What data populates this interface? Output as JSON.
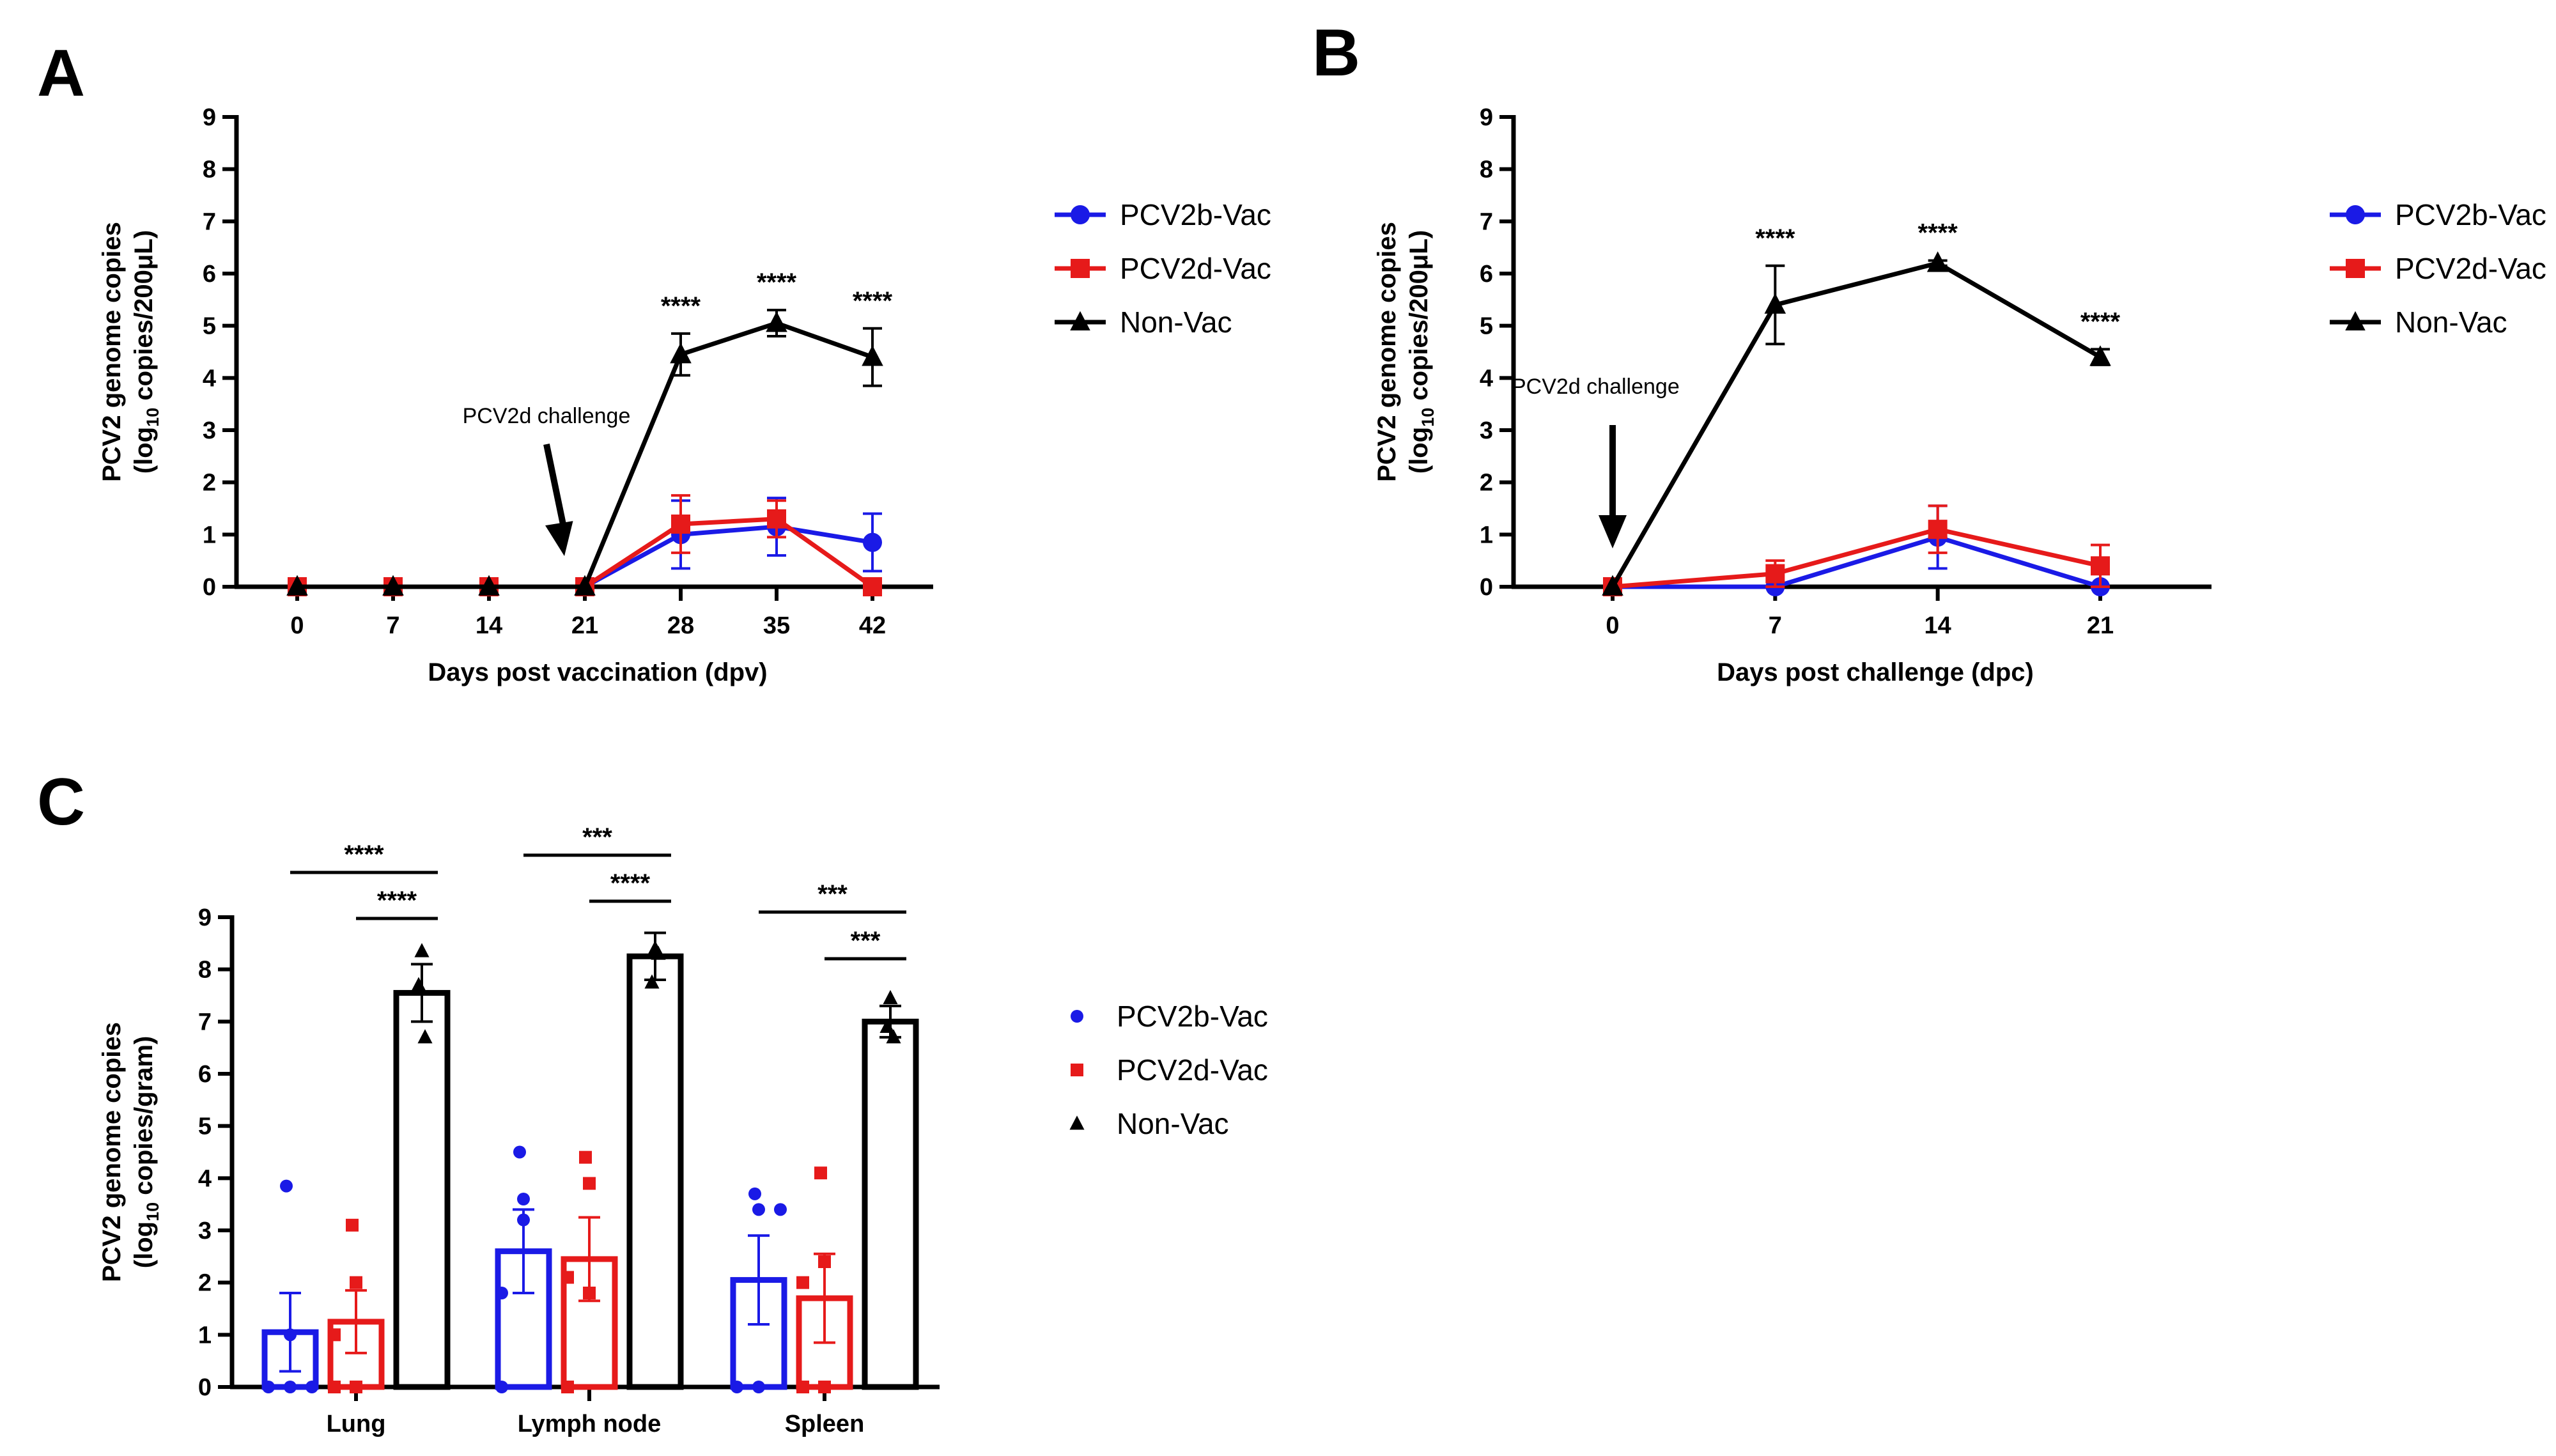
{
  "colors": {
    "PCV2b-Vac": "#1a1ae6",
    "PCV2d-Vac": "#e61a1a",
    "Non-Vac": "#000000"
  },
  "chart_data": [
    {
      "id": "A",
      "panel_label": "A",
      "type": "line",
      "ylabel_line1": "PCV2 genome copies",
      "ylabel_line2_pre": "(log",
      "ylabel_line2_sub": "10",
      "ylabel_line2_post": " copies/200μL)",
      "xlabel": "Days post vaccination (dpv)",
      "ylim": [
        0,
        9
      ],
      "yticks": [
        0,
        1,
        2,
        3,
        4,
        5,
        6,
        7,
        8,
        9
      ],
      "x": [
        0,
        7,
        14,
        21,
        28,
        35,
        42
      ],
      "xtick_labels": [
        "0",
        "7",
        "14",
        "21",
        "28",
        "35",
        "42"
      ],
      "series": [
        {
          "name": "PCV2b-Vac",
          "marker": "circle",
          "values": [
            0,
            0,
            0,
            0,
            1.0,
            1.15,
            0.85
          ],
          "errors": [
            0,
            0,
            0,
            0,
            0.65,
            0.55,
            0.55
          ]
        },
        {
          "name": "PCV2d-Vac",
          "marker": "square",
          "values": [
            0,
            0,
            0,
            0,
            1.2,
            1.3,
            0.0
          ],
          "errors": [
            0,
            0,
            0,
            0,
            0.55,
            0.35,
            0
          ]
        },
        {
          "name": "Non-Vac",
          "marker": "triangle",
          "values": [
            0,
            0,
            0,
            0,
            4.45,
            5.05,
            4.4
          ],
          "errors": [
            0,
            0,
            0,
            0,
            0.4,
            0.25,
            0.55
          ]
        }
      ],
      "significance": [
        {
          "x": 28,
          "label": "****"
        },
        {
          "x": 35,
          "label": "****"
        },
        {
          "x": 42,
          "label": "****"
        }
      ],
      "annotation": {
        "text": "PCV2d challenge",
        "x": 21
      },
      "legend": [
        "PCV2b-Vac",
        "PCV2d-Vac",
        "Non-Vac"
      ]
    },
    {
      "id": "B",
      "panel_label": "B",
      "type": "line",
      "ylabel_line1": "PCV2 genome copies",
      "ylabel_line2_pre": "(log",
      "ylabel_line2_sub": "10",
      "ylabel_line2_post": " copies/200μL)",
      "xlabel": "Days post challenge (dpc)",
      "ylim": [
        0,
        9
      ],
      "yticks": [
        0,
        1,
        2,
        3,
        4,
        5,
        6,
        7,
        8,
        9
      ],
      "x": [
        0,
        7,
        14,
        21
      ],
      "xtick_labels": [
        "0",
        "7",
        "14",
        "21"
      ],
      "series": [
        {
          "name": "PCV2b-Vac",
          "marker": "circle",
          "values": [
            0,
            0.0,
            0.95,
            0.0
          ],
          "errors": [
            0,
            0,
            0.6,
            0
          ]
        },
        {
          "name": "PCV2d-Vac",
          "marker": "square",
          "values": [
            0,
            0.25,
            1.1,
            0.4
          ],
          "errors": [
            0,
            0.25,
            0.45,
            0.4
          ]
        },
        {
          "name": "Non-Vac",
          "marker": "triangle",
          "values": [
            0,
            5.4,
            6.2,
            4.4
          ],
          "errors": [
            0,
            0.75,
            0.05,
            0.15
          ]
        }
      ],
      "significance": [
        {
          "x": 7,
          "label": "****"
        },
        {
          "x": 14,
          "label": "****"
        },
        {
          "x": 21,
          "label": "****"
        }
      ],
      "annotation": {
        "text": "PCV2d challenge",
        "x": 0
      },
      "legend": [
        "PCV2b-Vac",
        "PCV2d-Vac",
        "Non-Vac"
      ]
    },
    {
      "id": "C",
      "panel_label": "C",
      "type": "bar",
      "ylabel_line1": "PCV2 genome copies",
      "ylabel_line2_pre": "(log",
      "ylabel_line2_sub": "10",
      "ylabel_line2_post": " copies/gram)",
      "xlabel": "",
      "ylim": [
        0,
        9
      ],
      "yticks": [
        0,
        1,
        2,
        3,
        4,
        5,
        6,
        7,
        8,
        9
      ],
      "categories": [
        "Lung",
        "Lymph node",
        "Spleen"
      ],
      "series": [
        {
          "name": "PCV2b-Vac",
          "marker": "circle",
          "values": [
            1.05,
            2.6,
            2.05
          ],
          "errors": [
            0.75,
            0.8,
            0.85
          ],
          "points": [
            [
              3.85,
              1.0,
              0,
              0,
              0
            ],
            [
              4.5,
              3.6,
              1.8,
              3.2,
              0
            ],
            [
              3.7,
              3.4,
              0,
              0,
              3.4
            ]
          ]
        },
        {
          "name": "PCV2d-Vac",
          "marker": "square",
          "values": [
            1.25,
            2.45,
            1.7
          ],
          "errors": [
            0.6,
            0.8,
            0.85
          ],
          "points": [
            [
              3.1,
              2.0,
              1.0,
              0,
              0
            ],
            [
              4.4,
              3.9,
              2.1,
              1.8,
              0
            ],
            [
              4.1,
              2.4,
              2.0,
              0,
              0
            ]
          ]
        },
        {
          "name": "Non-Vac",
          "marker": "triangle",
          "values": [
            7.55,
            8.25,
            7.0
          ],
          "errors": [
            0.55,
            0.45,
            0.3
          ],
          "points": [
            [
              8.35,
              7.7,
              6.7
            ],
            [
              8.4,
              7.75,
              8.3
            ],
            [
              7.45,
              6.9,
              6.7
            ]
          ]
        }
      ],
      "significance": [
        {
          "category": "Lung",
          "from": "PCV2b-Vac",
          "to": "Non-Vac",
          "label": "****"
        },
        {
          "category": "Lung",
          "from": "PCV2d-Vac",
          "to": "Non-Vac",
          "label": "****"
        },
        {
          "category": "Lymph node",
          "from": "PCV2b-Vac",
          "to": "Non-Vac",
          "label": "***"
        },
        {
          "category": "Lymph node",
          "from": "PCV2d-Vac",
          "to": "Non-Vac",
          "label": "****"
        },
        {
          "category": "Spleen",
          "from": "PCV2b-Vac",
          "to": "Non-Vac",
          "label": "***"
        },
        {
          "category": "Spleen",
          "from": "PCV2d-Vac",
          "to": "Non-Vac",
          "label": "***"
        }
      ],
      "legend": [
        "PCV2b-Vac",
        "PCV2d-Vac",
        "Non-Vac"
      ]
    }
  ]
}
